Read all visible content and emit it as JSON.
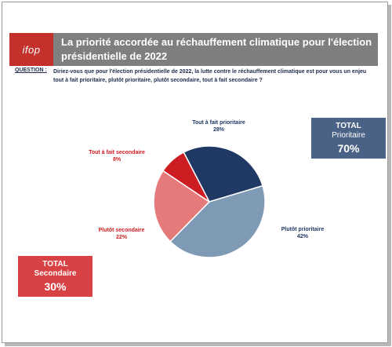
{
  "header": {
    "logo_text": "ifop",
    "title": "La priorité accordée au réchauffement climatique pour l'élection présidentielle de 2022"
  },
  "question": {
    "label": "QUESTION :",
    "text": "Diriez-vous que pour l'élection présidentielle de 2022, la lutte contre le réchauffement climatique est pour vous un enjeu tout à fait prioritaire, plutôt prioritaire, plutôt secondaire, tout à fait secondaire ?"
  },
  "totals": {
    "prioritaire": {
      "line1": "TOTAL",
      "line2": "Prioritaire",
      "value": "70%"
    },
    "secondaire": {
      "line1": "TOTAL",
      "line2": "Secondaire",
      "value": "30%"
    }
  },
  "chart_data": {
    "type": "pie",
    "slices": [
      {
        "label": "Tout à fait prioritaire",
        "value": 28,
        "display": "28%",
        "color": "#1f3864"
      },
      {
        "label": "Plutôt prioritaire",
        "value": 42,
        "display": "42%",
        "color": "#7f9ab5"
      },
      {
        "label": "Plutôt secondaire",
        "value": 22,
        "display": "22%",
        "color": "#e67a7a"
      },
      {
        "label": "Tout à fait secondaire",
        "value": 8,
        "display": "8%",
        "color": "#cc1d22"
      }
    ]
  },
  "colors": {
    "header_bg": "#7f7f7f",
    "logo_bg": "#c4302b",
    "prioritaire_box": "#4a6285",
    "secondaire_box": "#d94244",
    "text_navy": "#1f2d4d"
  }
}
